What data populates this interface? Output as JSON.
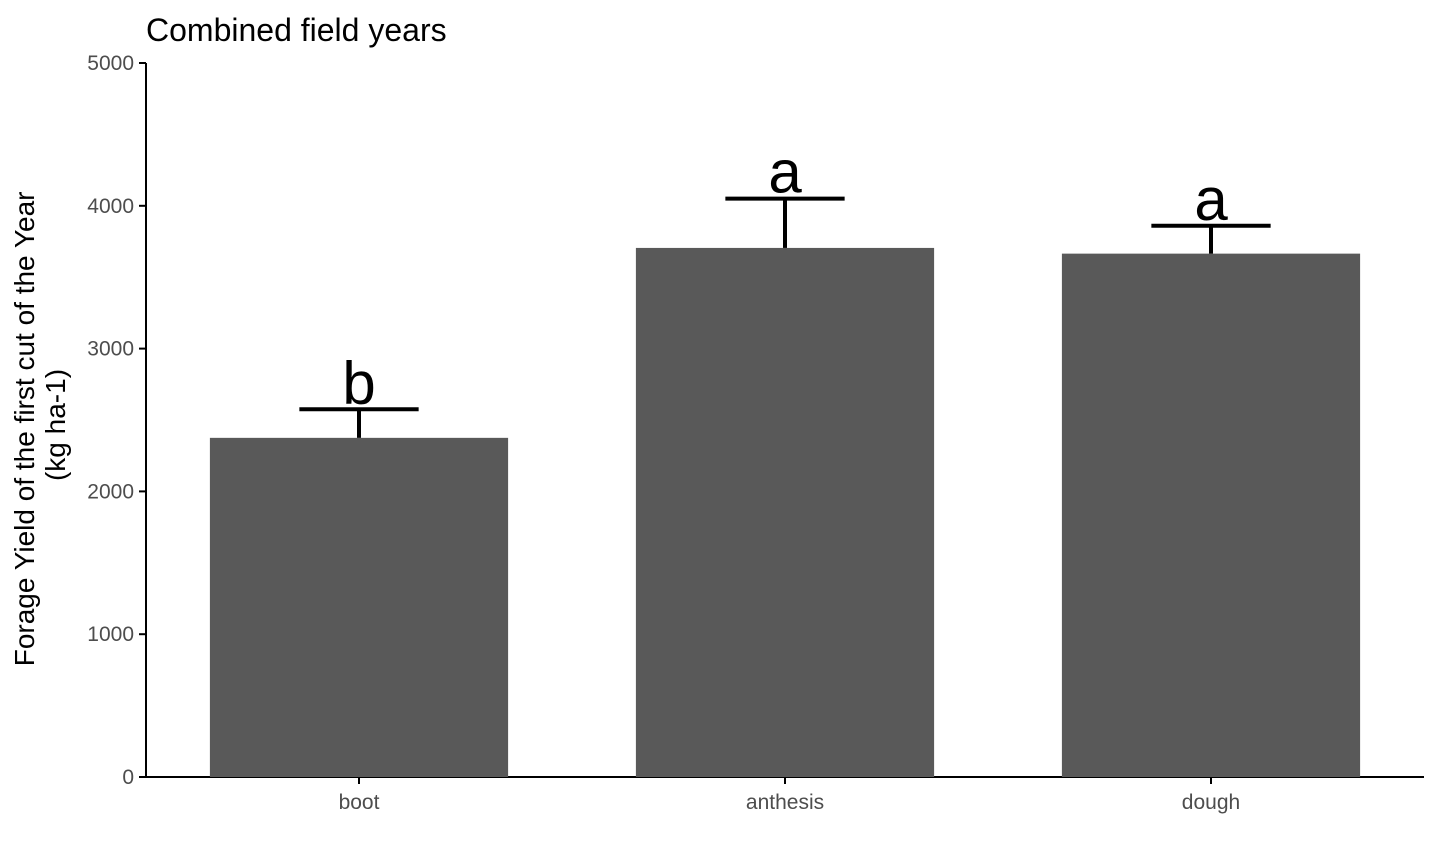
{
  "chart_data": {
    "type": "bar",
    "title": "Combined field years",
    "xlabel": "",
    "ylabel_lines": [
      "Forage Yield of the first cut of the Year",
      "(kg ha-1)"
    ],
    "categories": [
      "boot",
      "anthesis",
      "dough"
    ],
    "values": [
      2375,
      3705,
      3665
    ],
    "errors": [
      200,
      345,
      195
    ],
    "group_letters": [
      "b",
      "a",
      "a"
    ],
    "ylim": [
      0,
      5000
    ],
    "yticks": [
      0,
      1000,
      2000,
      3000,
      4000,
      5000
    ],
    "bar_color": "#595959",
    "grid": false
  }
}
